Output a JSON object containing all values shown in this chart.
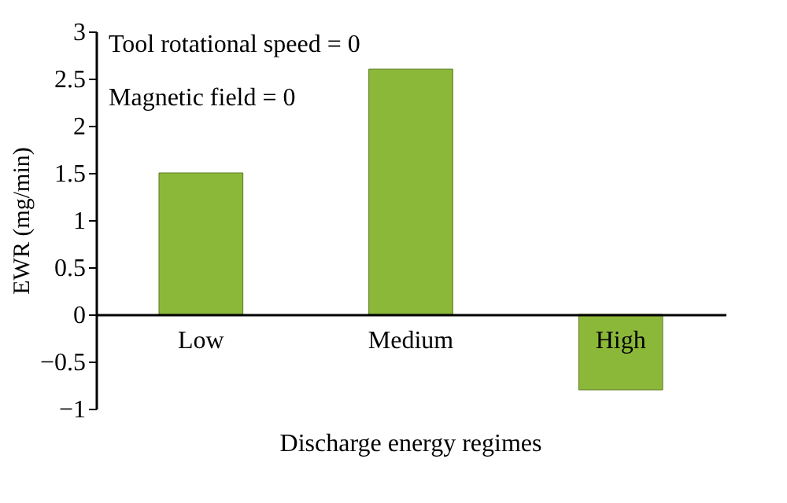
{
  "chart_data": {
    "type": "bar",
    "categories": [
      "Low",
      "Medium",
      "High"
    ],
    "values": [
      1.5,
      2.6,
      -0.8
    ],
    "color": "#8cb83a",
    "xlabel": "Discharge energy regimes",
    "ylabel": "EWR (mg/min)",
    "ylim": [
      -1,
      3
    ],
    "yticks": [
      {
        "value": -1,
        "label": "−1"
      },
      {
        "value": -0.5,
        "label": "−0.5"
      },
      0,
      0.5,
      1,
      1.5,
      2,
      2.5,
      3
    ],
    "annotations": [
      "Tool rotational speed = 0",
      "Magnetic field = 0"
    ],
    "grid": false
  }
}
